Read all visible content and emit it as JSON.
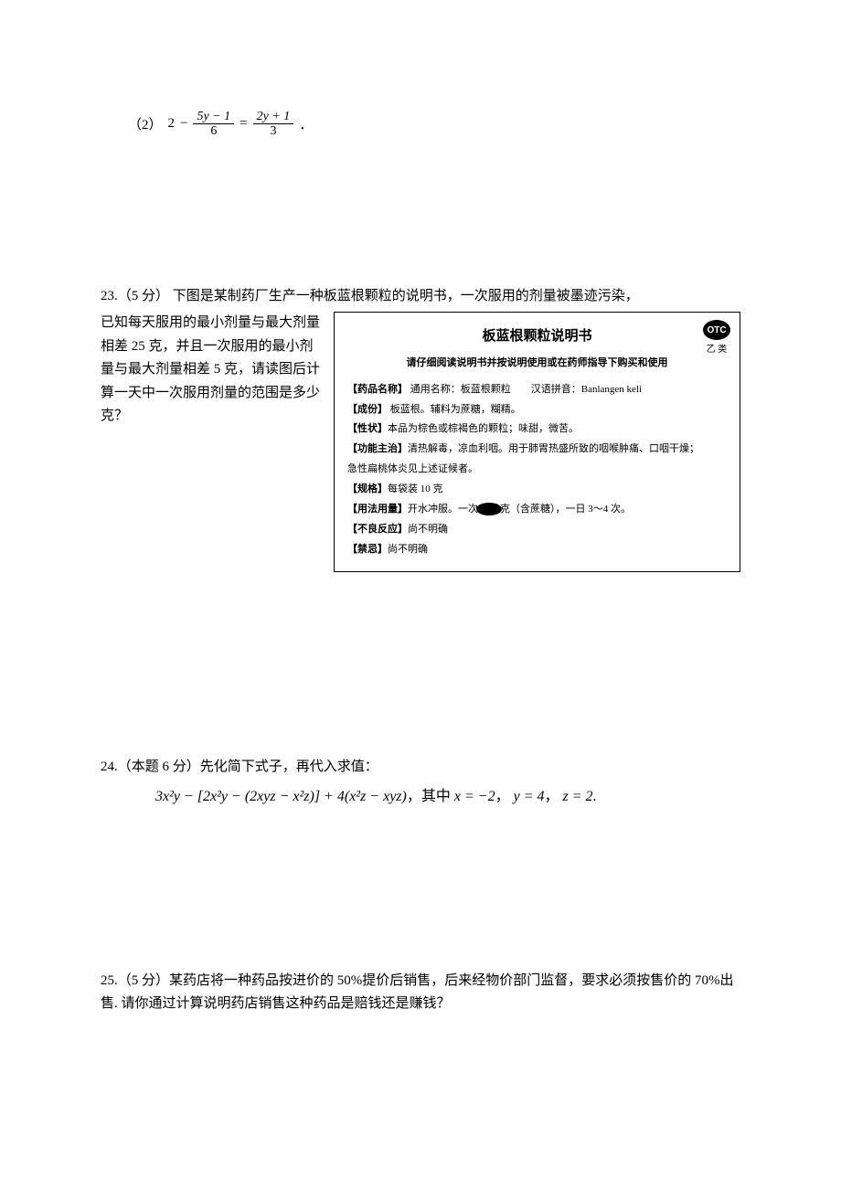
{
  "q22": {
    "label": "（2）",
    "left_const": "2",
    "minus": "−",
    "frac1_num": "5y − 1",
    "frac1_den": "6",
    "eq": "=",
    "frac2_num": "2y + 1",
    "frac2_den": "3",
    "end": "．"
  },
  "q23": {
    "firstline": "23.（5 分） 下图是某制药厂生产一种板蓝根颗粒的说明书，一次服用的剂量被墨迹污染，",
    "left_text": "已知每天服用的最小剂量与最大剂量相差 25 克，并且一次服用的最小剂量与最大剂量相差 5 克，请读图后计算一天中一次服用剂量的范围是多少克？",
    "box": {
      "title": "板蓝根颗粒说明书",
      "subtitle": "请仔细阅读说明书并按说明使用或在药师指导下购买和使用",
      "otc": "OTC",
      "otc_class": "乙 类",
      "name_label": "【药品名称】",
      "name_text": "  通用名称：板蓝根颗粒　　汉语拼音：Banlangen keli",
      "ingredient_label": "【成份】",
      "ingredient_text": "  板蓝根。辅料为蔗糖，糊精。",
      "trait_label": "【性状】",
      "trait_text": "本品为棕色或棕褐色的颗粒；味甜，微苦。",
      "function_label": "【功能主治】",
      "function_text": "清热解毒，凉血利咽。用于肺胃热盛所致的咽喉肿痛、口咽干燥；",
      "function_text2": "急性扁桃体炎见上述证候者。",
      "spec_label": "【规格】",
      "spec_text": "每袋装 10 克",
      "usage_label": "【用法用量】",
      "usage_text_a": "开水冲服。一次",
      "usage_text_b": "克（含蔗糖），一日 3～4 次。",
      "adverse_label": "【不良反应】",
      "adverse_text": "尚不明确",
      "contra_label": "【禁忌】",
      "contra_text": "尚不明确"
    }
  },
  "q24": {
    "text": "24.（本题 6 分）先化简下式子，再代入求值：",
    "formula_main": "3x²y − [2x²y − (2xyz − x²z)] + 4(x²z − xyz)",
    "where": "，其中",
    "x_eq": "x = −2",
    "comma1": "，",
    "y_eq": "y = 4",
    "comma2": "，",
    "z_eq": "z = 2",
    "period": "."
  },
  "q25": {
    "text": "25.（5 分）某药店将一种药品按进价的 50%提价后销售，后来经物价部门监督，要求必须按售价的 70%出售. 请你通过计算说明药店销售这种药品是赔钱还是赚钱？"
  }
}
